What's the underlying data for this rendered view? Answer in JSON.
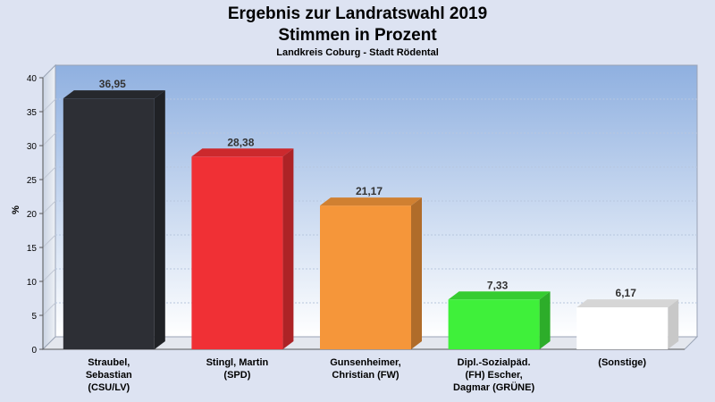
{
  "chart_data": {
    "type": "bar",
    "title_line1": "Ergebnis zur Landratswahl 2019",
    "title_line2": "Stimmen in Prozent",
    "subtitle": "Landkreis Coburg - Stadt Rödental",
    "ylabel": "%",
    "ylim": [
      0,
      40
    ],
    "yticks": [
      0,
      5,
      10,
      15,
      20,
      25,
      30,
      35,
      40
    ],
    "grid": true,
    "categories": [
      [
        "Straubel,",
        "Sebastian",
        "(CSU/LV)"
      ],
      [
        "Stingl, Martin",
        "(SPD)"
      ],
      [
        "Gunsenheimer,",
        "Christian (FW)"
      ],
      [
        "Dipl.-Sozialpäd.",
        "(FH) Escher,",
        "Dagmar (GRÜNE)"
      ],
      [
        "(Sonstige)"
      ]
    ],
    "values": [
      36.95,
      28.38,
      21.17,
      7.33,
      6.17
    ],
    "value_labels": [
      "36,95",
      "28,38",
      "21,17",
      "7,33",
      "6,17"
    ],
    "colors": [
      "#2d2f35",
      "#f03035",
      "#f5963a",
      "#3ff03a",
      "#ffffff"
    ]
  }
}
